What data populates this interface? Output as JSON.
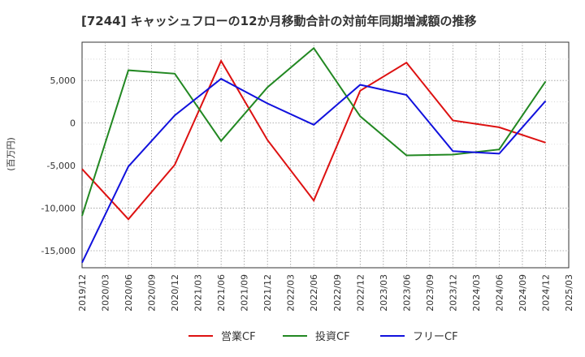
{
  "chart_data": {
    "type": "line",
    "title": "[7244]  キャッシュフローの12か月移動合計の対前年同期増減額の推移",
    "ylabel": "(百万円)",
    "xlabel": "",
    "ylim": [
      -17000,
      9500
    ],
    "yticks": [
      5000,
      0,
      -5000,
      -10000,
      -15000
    ],
    "ytick_labels": [
      "5,000",
      "0",
      "-5,000",
      "-10,000",
      "-15,000"
    ],
    "xtick_labels": [
      "2019/12",
      "2020/03",
      "2020/06",
      "2020/09",
      "2020/12",
      "2021/03",
      "2021/06",
      "2021/09",
      "2021/12",
      "2022/03",
      "2022/06",
      "2022/09",
      "2022/12",
      "2023/03",
      "2023/06",
      "2023/09",
      "2023/12",
      "2024/03",
      "2024/06",
      "2024/09",
      "2024/12",
      "2025/03"
    ],
    "grid": true,
    "legend_position": "bottom",
    "series": [
      {
        "name": "営業CF",
        "color": "#dd1111",
        "points": [
          [
            0,
            -5400
          ],
          [
            2,
            -11300
          ],
          [
            4,
            -4900
          ],
          [
            6,
            7300
          ],
          [
            8,
            -2000
          ],
          [
            10,
            -9100
          ],
          [
            12,
            3800
          ],
          [
            14,
            7100
          ],
          [
            16,
            300
          ],
          [
            18,
            -500
          ],
          [
            20,
            -2300
          ]
        ]
      },
      {
        "name": "投資CF",
        "color": "#228822",
        "points": [
          [
            0,
            -10900
          ],
          [
            2,
            6200
          ],
          [
            4,
            5800
          ],
          [
            6,
            -2100
          ],
          [
            8,
            4200
          ],
          [
            10,
            8800
          ],
          [
            12,
            800
          ],
          [
            14,
            -3800
          ],
          [
            16,
            -3700
          ],
          [
            18,
            -3100
          ],
          [
            20,
            4900
          ]
        ]
      },
      {
        "name": "フリーCF",
        "color": "#1111dd",
        "points": [
          [
            0,
            -16400
          ],
          [
            2,
            -5100
          ],
          [
            4,
            900
          ],
          [
            6,
            5200
          ],
          [
            8,
            2300
          ],
          [
            10,
            -200
          ],
          [
            12,
            4500
          ],
          [
            14,
            3300
          ],
          [
            16,
            -3300
          ],
          [
            18,
            -3600
          ],
          [
            20,
            2600
          ]
        ]
      }
    ]
  }
}
